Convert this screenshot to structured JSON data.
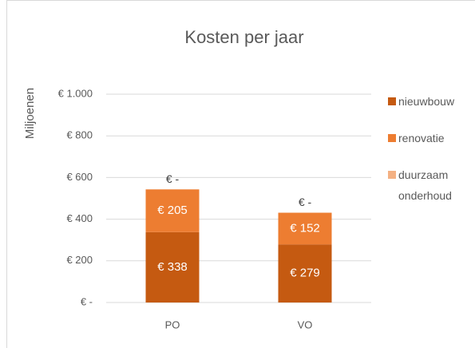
{
  "chart_data": {
    "type": "stacked_bar",
    "title": "Kosten per jaar",
    "y_label": "Miljoenen",
    "categories": [
      "PO",
      "VO"
    ],
    "series": [
      {
        "name": "nieuwbouw",
        "color": "#c55a11",
        "values": [
          338,
          279
        ],
        "value_labels": [
          "€ 338",
          "€ 279"
        ]
      },
      {
        "name": "renovatie",
        "color": "#ed7d31",
        "values": [
          205,
          152
        ],
        "value_labels": [
          "€ 205",
          "€ 152"
        ]
      },
      {
        "name": "duurzaam onderhoud",
        "color": "#f4b183",
        "values": [
          0,
          0
        ],
        "value_labels": [
          "€ -",
          "€ -"
        ]
      }
    ],
    "ylim": [
      0,
      1000
    ],
    "yticks": [
      {
        "value": 0,
        "label": "€ -"
      },
      {
        "value": 200,
        "label": "€ 200"
      },
      {
        "value": 400,
        "label": "€ 400"
      },
      {
        "value": 600,
        "label": "€ 600"
      },
      {
        "value": 800,
        "label": "€ 800"
      },
      {
        "value": 1000,
        "label": "€ 1.000"
      }
    ],
    "grid": true,
    "legend": "right"
  }
}
